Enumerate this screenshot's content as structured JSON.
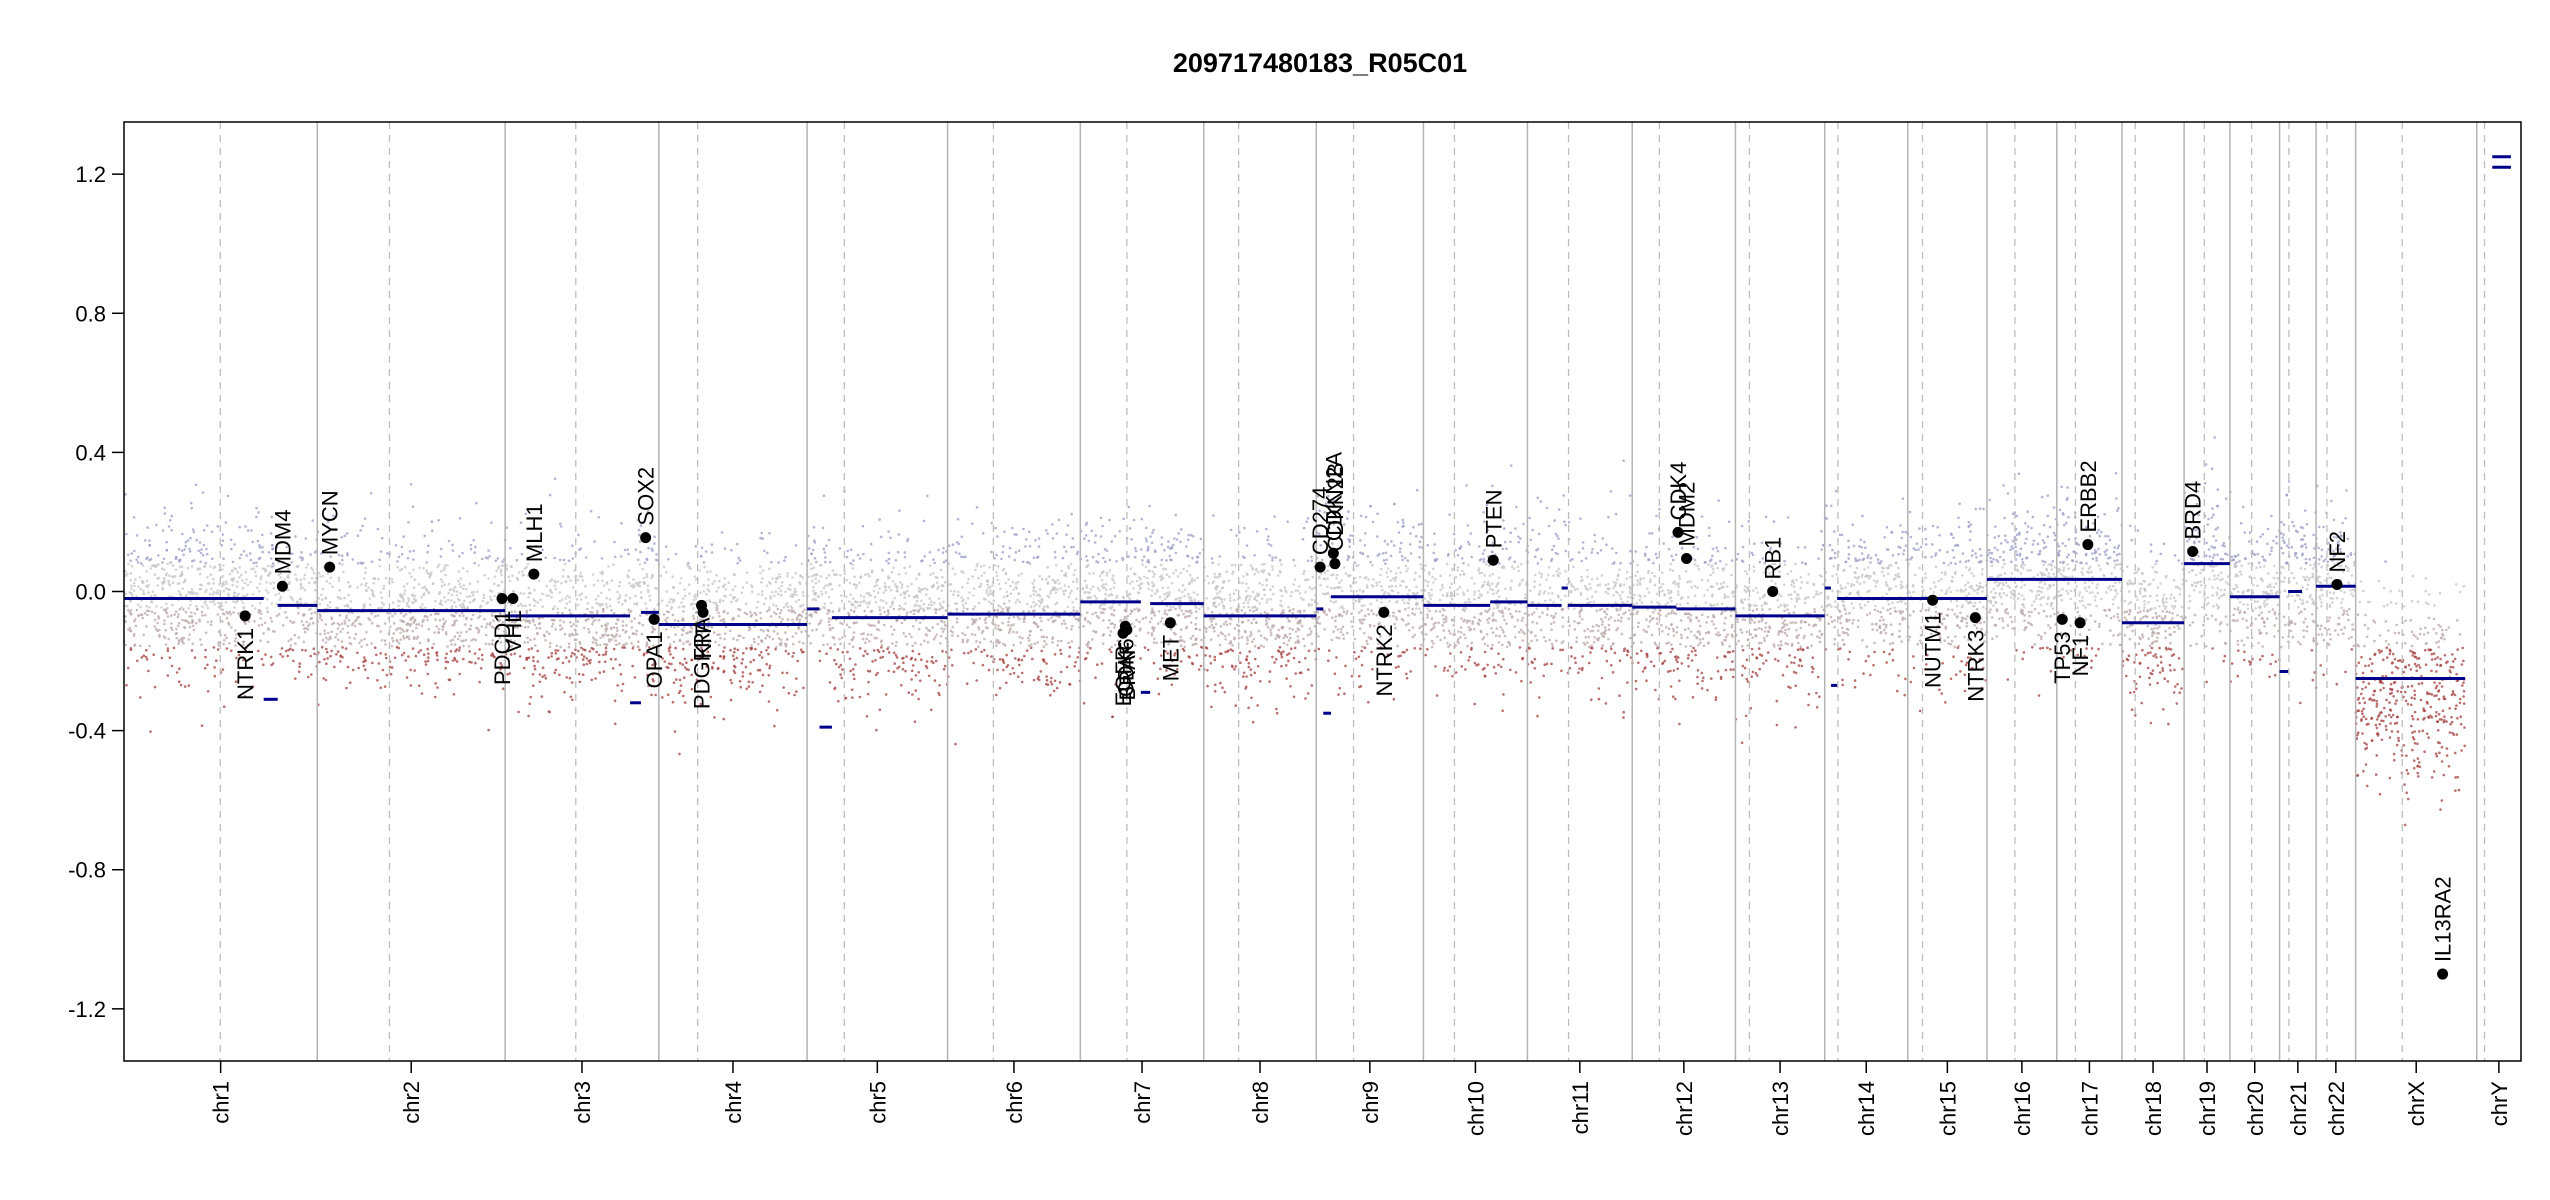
{
  "chart_data": {
    "type": "scatter",
    "title": "209717480183_R05C01",
    "xlabel": "",
    "ylabel": "",
    "ylim": [
      -1.35,
      1.35
    ],
    "y_ticks": [
      {
        "value": 1.2,
        "label": "1.2"
      },
      {
        "value": 0.8,
        "label": "0.8"
      },
      {
        "value": 0.4,
        "label": "0.4"
      },
      {
        "value": 0.0,
        "label": "0.0"
      },
      {
        "value": -0.4,
        "label": "-0.4"
      },
      {
        "value": -0.8,
        "label": "-0.8"
      },
      {
        "value": -1.2,
        "label": "-1.2"
      }
    ],
    "grid": false,
    "genome_units": "Mb",
    "chromosomes": [
      {
        "name": "chr1",
        "start": 0,
        "end": 249,
        "centromere": 124
      },
      {
        "name": "chr2",
        "start": 249,
        "end": 491,
        "centromere": 342
      },
      {
        "name": "chr3",
        "start": 491,
        "end": 689,
        "centromere": 582
      },
      {
        "name": "chr4",
        "start": 689,
        "end": 880,
        "centromere": 739
      },
      {
        "name": "chr5",
        "start": 880,
        "end": 1061,
        "centromere": 928
      },
      {
        "name": "chr6",
        "start": 1061,
        "end": 1232,
        "centromere": 1120
      },
      {
        "name": "chr7",
        "start": 1232,
        "end": 1391,
        "centromere": 1292
      },
      {
        "name": "chr8",
        "start": 1391,
        "end": 1536,
        "centromere": 1436
      },
      {
        "name": "chr9",
        "start": 1536,
        "end": 1674,
        "centromere": 1584
      },
      {
        "name": "chr10",
        "start": 1674,
        "end": 1808,
        "centromere": 1714
      },
      {
        "name": "chr11",
        "start": 1808,
        "end": 1943,
        "centromere": 1861
      },
      {
        "name": "chr12",
        "start": 1943,
        "end": 2076,
        "centromere": 1978
      },
      {
        "name": "chr13",
        "start": 2076,
        "end": 2191,
        "centromere": 2094
      },
      {
        "name": "chr14",
        "start": 2191,
        "end": 2298,
        "centromere": 2208
      },
      {
        "name": "chr15",
        "start": 2298,
        "end": 2400,
        "centromere": 2317
      },
      {
        "name": "chr16",
        "start": 2400,
        "end": 2490,
        "centromere": 2436
      },
      {
        "name": "chr17",
        "start": 2490,
        "end": 2574,
        "centromere": 2514
      },
      {
        "name": "chr18",
        "start": 2574,
        "end": 2654,
        "centromere": 2591
      },
      {
        "name": "chr19",
        "start": 2654,
        "end": 2713,
        "centromere": 2680
      },
      {
        "name": "chr20",
        "start": 2713,
        "end": 2777,
        "centromere": 2741
      },
      {
        "name": "chr21",
        "start": 2777,
        "end": 2824,
        "centromere": 2789
      },
      {
        "name": "chr22",
        "start": 2824,
        "end": 2875,
        "centromere": 2838
      },
      {
        "name": "chrX",
        "start": 2875,
        "end": 3031,
        "centromere": 2935
      },
      {
        "name": "chrY",
        "start": 3031,
        "end": 3088,
        "centromere": 3041
      }
    ],
    "segments": [
      {
        "x0": 0,
        "x1": 180,
        "y": -0.02
      },
      {
        "x0": 180,
        "x1": 198,
        "y": -0.31
      },
      {
        "x0": 198,
        "x1": 249,
        "y": -0.04
      },
      {
        "x0": 249,
        "x1": 491,
        "y": -0.055
      },
      {
        "x0": 491,
        "x1": 652,
        "y": -0.07
      },
      {
        "x0": 652,
        "x1": 666,
        "y": -0.32
      },
      {
        "x0": 666,
        "x1": 689,
        "y": -0.06
      },
      {
        "x0": 689,
        "x1": 880,
        "y": -0.095
      },
      {
        "x0": 880,
        "x1": 896,
        "y": -0.05
      },
      {
        "x0": 896,
        "x1": 912,
        "y": -0.39
      },
      {
        "x0": 912,
        "x1": 1061,
        "y": -0.075
      },
      {
        "x0": 1061,
        "x1": 1232,
        "y": -0.065
      },
      {
        "x0": 1232,
        "x1": 1310,
        "y": -0.03
      },
      {
        "x0": 1310,
        "x1": 1322,
        "y": -0.29
      },
      {
        "x0": 1322,
        "x1": 1391,
        "y": -0.035
      },
      {
        "x0": 1391,
        "x1": 1536,
        "y": -0.07
      },
      {
        "x0": 1536,
        "x1": 1545,
        "y": -0.05
      },
      {
        "x0": 1545,
        "x1": 1555,
        "y": -0.35
      },
      {
        "x0": 1555,
        "x1": 1674,
        "y": -0.015
      },
      {
        "x0": 1674,
        "x1": 1760,
        "y": -0.04
      },
      {
        "x0": 1760,
        "x1": 1808,
        "y": -0.03
      },
      {
        "x0": 1808,
        "x1": 1852,
        "y": -0.04
      },
      {
        "x0": 1852,
        "x1": 1860,
        "y": 0.01
      },
      {
        "x0": 1860,
        "x1": 1943,
        "y": -0.04
      },
      {
        "x0": 1943,
        "x1": 2000,
        "y": -0.045
      },
      {
        "x0": 2000,
        "x1": 2076,
        "y": -0.05
      },
      {
        "x0": 2076,
        "x1": 2191,
        "y": -0.07
      },
      {
        "x0": 2191,
        "x1": 2199,
        "y": 0.01
      },
      {
        "x0": 2199,
        "x1": 2207,
        "y": -0.27
      },
      {
        "x0": 2207,
        "x1": 2298,
        "y": -0.02
      },
      {
        "x0": 2298,
        "x1": 2400,
        "y": -0.02
      },
      {
        "x0": 2400,
        "x1": 2574,
        "y": 0.035
      },
      {
        "x0": 2574,
        "x1": 2654,
        "y": -0.09
      },
      {
        "x0": 2654,
        "x1": 2713,
        "y": 0.08
      },
      {
        "x0": 2713,
        "x1": 2777,
        "y": -0.015
      },
      {
        "x0": 2777,
        "x1": 2788,
        "y": -0.23
      },
      {
        "x0": 2788,
        "x1": 2806,
        "y": 0.0
      },
      {
        "x0": 2824,
        "x1": 2875,
        "y": 0.015
      },
      {
        "x0": 2875,
        "x1": 3016,
        "y": -0.25
      },
      {
        "x0": 3051,
        "x1": 3075,
        "y": 1.25
      },
      {
        "x0": 3051,
        "x1": 3075,
        "y": 1.22
      }
    ],
    "genes": [
      {
        "name": "NTRK1",
        "x": 156,
        "y": -0.07,
        "label_side": "below"
      },
      {
        "name": "MDM4",
        "x": 204,
        "y": 0.015,
        "label_side": "above"
      },
      {
        "name": "MYCN",
        "x": 265,
        "y": 0.07,
        "label_side": "above"
      },
      {
        "name": "PDGFRA",
        "x": 744,
        "y": -0.04,
        "label_side": "below"
      },
      {
        "name": "KIT",
        "x": 746,
        "y": -0.06,
        "label_side": "below"
      },
      {
        "name": "PDCD1",
        "x": 487,
        "y": -0.02,
        "label_side": "below"
      },
      {
        "name": "VHL",
        "x": 501,
        "y": -0.02,
        "label_side": "below"
      },
      {
        "name": "MLH1",
        "x": 528,
        "y": 0.05,
        "label_side": "above"
      },
      {
        "name": "SOX2",
        "x": 672,
        "y": 0.155,
        "label_side": "above"
      },
      {
        "name": "OPA1",
        "x": 683,
        "y": -0.08,
        "label_side": "below"
      },
      {
        "name": "EGFR",
        "x": 1287,
        "y": -0.12,
        "label_side": "below"
      },
      {
        "name": "CDK6",
        "x": 1290,
        "y": -0.1,
        "label_side": "below"
      },
      {
        "name": "BRAF",
        "x": 1292,
        "y": -0.11,
        "label_side": "below"
      },
      {
        "name": "MET",
        "x": 1348,
        "y": -0.09,
        "label_side": "below"
      },
      {
        "name": "CD274",
        "x": 1541,
        "y": 0.07,
        "label_side": "above"
      },
      {
        "name": "CDKN2A",
        "x": 1558,
        "y": 0.11,
        "label_side": "above"
      },
      {
        "name": "CDKN2B",
        "x": 1560,
        "y": 0.08,
        "label_side": "above"
      },
      {
        "name": "NTRK2",
        "x": 1623,
        "y": -0.06,
        "label_side": "below"
      },
      {
        "name": "PTEN",
        "x": 1764,
        "y": 0.09,
        "label_side": "above"
      },
      {
        "name": "CDK4",
        "x": 2002,
        "y": 0.17,
        "label_side": "above"
      },
      {
        "name": "MDM2",
        "x": 2013,
        "y": 0.095,
        "label_side": "above"
      },
      {
        "name": "RB1",
        "x": 2124,
        "y": 0.0,
        "label_side": "above"
      },
      {
        "name": "NUTM1",
        "x": 2330,
        "y": -0.025,
        "label_side": "below"
      },
      {
        "name": "NTRK3",
        "x": 2385,
        "y": -0.075,
        "label_side": "below"
      },
      {
        "name": "TP53",
        "x": 2497,
        "y": -0.08,
        "label_side": "below"
      },
      {
        "name": "NF1",
        "x": 2520,
        "y": -0.09,
        "label_side": "below"
      },
      {
        "name": "ERBB2",
        "x": 2530,
        "y": 0.135,
        "label_side": "above"
      },
      {
        "name": "BRD4",
        "x": 2665,
        "y": 0.115,
        "label_side": "above"
      },
      {
        "name": "NF2",
        "x": 2851,
        "y": 0.02,
        "label_side": "above"
      },
      {
        "name": "IL13RA2",
        "x": 2987,
        "y": -1.1,
        "label_side": "above"
      }
    ]
  }
}
